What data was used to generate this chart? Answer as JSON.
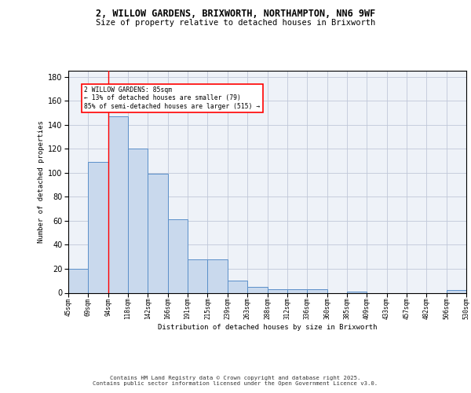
{
  "title_line1": "2, WILLOW GARDENS, BRIXWORTH, NORTHAMPTON, NN6 9WF",
  "title_line2": "Size of property relative to detached houses in Brixworth",
  "xlabel": "Distribution of detached houses by size in Brixworth",
  "ylabel": "Number of detached properties",
  "bar_values": [
    20,
    109,
    147,
    120,
    99,
    61,
    28,
    28,
    10,
    5,
    3,
    3,
    3,
    0,
    1,
    0,
    0,
    0,
    0,
    2
  ],
  "bin_labels": [
    "45sqm",
    "69sqm",
    "94sqm",
    "118sqm",
    "142sqm",
    "166sqm",
    "191sqm",
    "215sqm",
    "239sqm",
    "263sqm",
    "288sqm",
    "312sqm",
    "336sqm",
    "360sqm",
    "385sqm",
    "409sqm",
    "433sqm",
    "457sqm",
    "482sqm",
    "506sqm",
    "530sqm"
  ],
  "bar_color": "#c9d9ed",
  "bar_edge_color": "#5b8fc9",
  "grid_color": "#c0c8d8",
  "bg_color": "#eef2f8",
  "red_line_x": 1.5,
  "annotation_text": "2 WILLOW GARDENS: 85sqm\n← 13% of detached houses are smaller (79)\n85% of semi-detached houses are larger (515) →",
  "annotation_box_color": "white",
  "annotation_box_edge": "red",
  "footer_text": "Contains HM Land Registry data © Crown copyright and database right 2025.\nContains public sector information licensed under the Open Government Licence v3.0.",
  "ylim": [
    0,
    185
  ]
}
